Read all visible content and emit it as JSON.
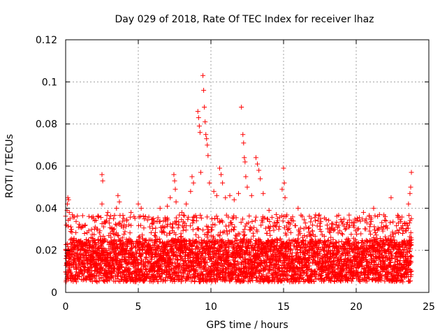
{
  "chart_data": {
    "type": "scatter",
    "title": "Day 029 of 2018, Rate Of TEC Index for receiver lhaz",
    "xlabel": "GPS time / hours",
    "ylabel": "ROTI / TECUs",
    "xlim": [
      0,
      25
    ],
    "ylim": [
      0,
      0.12
    ],
    "x_ticks": [
      "0",
      "5",
      "10",
      "15",
      "20",
      "25"
    ],
    "x_tick_values": [
      0,
      5,
      10,
      15,
      20,
      25
    ],
    "y_ticks": [
      "0",
      "0.02",
      "0.04",
      "0.06",
      "0.08",
      "0.1",
      "0.12"
    ],
    "y_tick_values": [
      0,
      0.02,
      0.04,
      0.06,
      0.08,
      0.1,
      0.12
    ],
    "grid": true,
    "marker": "+",
    "color": "#ff0000",
    "data_x_range": [
      0,
      23.8
    ],
    "baseline_band": [
      0.005,
      0.025
    ],
    "series": [
      {
        "name": "ROTI",
        "points": [
          [
            0.05,
            0.032
          ],
          [
            0.1,
            0.039
          ],
          [
            0.12,
            0.042
          ],
          [
            0.15,
            0.045
          ],
          [
            0.2,
            0.044
          ],
          [
            0.25,
            0.038
          ],
          [
            0.3,
            0.035
          ],
          [
            0.4,
            0.03
          ],
          [
            0.5,
            0.025
          ],
          [
            1.0,
            0.031
          ],
          [
            1.3,
            0.028
          ],
          [
            2.0,
            0.034
          ],
          [
            2.2,
            0.03
          ],
          [
            2.5,
            0.056
          ],
          [
            2.55,
            0.053
          ],
          [
            2.5,
            0.042
          ],
          [
            2.9,
            0.038
          ],
          [
            3.0,
            0.033
          ],
          [
            3.3,
            0.035
          ],
          [
            3.5,
            0.04
          ],
          [
            3.6,
            0.046
          ],
          [
            3.7,
            0.043
          ],
          [
            4.2,
            0.034
          ],
          [
            4.5,
            0.038
          ],
          [
            5.0,
            0.042
          ],
          [
            5.2,
            0.04
          ],
          [
            5.5,
            0.036
          ],
          [
            6.0,
            0.033
          ],
          [
            6.5,
            0.04
          ],
          [
            7.0,
            0.041
          ],
          [
            7.2,
            0.045
          ],
          [
            7.45,
            0.056
          ],
          [
            7.5,
            0.053
          ],
          [
            7.55,
            0.049
          ],
          [
            7.6,
            0.043
          ],
          [
            8.0,
            0.038
          ],
          [
            8.3,
            0.042
          ],
          [
            8.6,
            0.048
          ],
          [
            8.7,
            0.055
          ],
          [
            8.8,
            0.052
          ],
          [
            9.1,
            0.086
          ],
          [
            9.15,
            0.083
          ],
          [
            9.2,
            0.079
          ],
          [
            9.25,
            0.076
          ],
          [
            9.3,
            0.057
          ],
          [
            9.45,
            0.103
          ],
          [
            9.5,
            0.096
          ],
          [
            9.55,
            0.088
          ],
          [
            9.6,
            0.081
          ],
          [
            9.65,
            0.075
          ],
          [
            9.7,
            0.073
          ],
          [
            9.75,
            0.07
          ],
          [
            9.8,
            0.065
          ],
          [
            9.9,
            0.052
          ],
          [
            10.2,
            0.048
          ],
          [
            10.4,
            0.046
          ],
          [
            10.6,
            0.059
          ],
          [
            10.7,
            0.056
          ],
          [
            10.8,
            0.052
          ],
          [
            11.0,
            0.045
          ],
          [
            11.3,
            0.046
          ],
          [
            11.6,
            0.044
          ],
          [
            11.9,
            0.047
          ],
          [
            12.1,
            0.088
          ],
          [
            12.2,
            0.075
          ],
          [
            12.25,
            0.071
          ],
          [
            12.3,
            0.064
          ],
          [
            12.35,
            0.062
          ],
          [
            12.4,
            0.055
          ],
          [
            12.5,
            0.05
          ],
          [
            12.8,
            0.046
          ],
          [
            13.1,
            0.064
          ],
          [
            13.2,
            0.061
          ],
          [
            13.3,
            0.058
          ],
          [
            13.4,
            0.054
          ],
          [
            13.6,
            0.047
          ],
          [
            14.0,
            0.039
          ],
          [
            14.5,
            0.037
          ],
          [
            14.9,
            0.049
          ],
          [
            15.0,
            0.059
          ],
          [
            15.05,
            0.052
          ],
          [
            15.1,
            0.045
          ],
          [
            15.5,
            0.035
          ],
          [
            16.0,
            0.04
          ],
          [
            16.5,
            0.033
          ],
          [
            17.0,
            0.032
          ],
          [
            17.5,
            0.03
          ],
          [
            18.0,
            0.032
          ],
          [
            18.5,
            0.03
          ],
          [
            19.0,
            0.028
          ],
          [
            19.5,
            0.031
          ],
          [
            20.0,
            0.034
          ],
          [
            20.5,
            0.038
          ],
          [
            20.9,
            0.036
          ],
          [
            21.2,
            0.04
          ],
          [
            21.6,
            0.037
          ],
          [
            22.0,
            0.036
          ],
          [
            22.4,
            0.045
          ],
          [
            22.9,
            0.033
          ],
          [
            23.2,
            0.028
          ],
          [
            23.6,
            0.042
          ],
          [
            23.7,
            0.047
          ],
          [
            23.75,
            0.05
          ],
          [
            23.8,
            0.057
          ]
        ]
      }
    ]
  }
}
